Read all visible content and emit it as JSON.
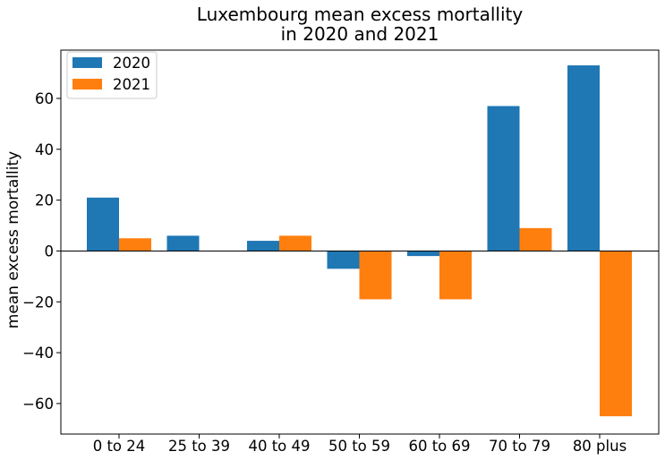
{
  "chart_data": {
    "type": "bar",
    "title": [
      "Luxembourg mean excess mortallity",
      "in 2020 and 2021"
    ],
    "xlabel": "",
    "ylabel": "mean excess mortallity",
    "categories": [
      "0 to 24",
      "25 to 39",
      "40 to 49",
      "50 to 59",
      "60 to 69",
      "70 to 79",
      "80 plus"
    ],
    "series": [
      {
        "name": "2020",
        "color": "#1f77b4",
        "values": [
          21,
          6,
          4,
          -7,
          -2,
          57,
          73
        ]
      },
      {
        "name": "2021",
        "color": "#ff7f0e",
        "values": [
          5,
          0,
          6,
          -19,
          -19,
          9,
          -65
        ]
      }
    ],
    "ylim": [
      -72,
      79
    ],
    "yticks": [
      -60,
      -40,
      -20,
      0,
      20,
      40,
      60
    ],
    "yticklabels": [
      "−60",
      "−40",
      "−20",
      "0",
      "20",
      "40",
      "60"
    ],
    "legend_position": "top-left",
    "grid": false,
    "zero_line": true
  }
}
